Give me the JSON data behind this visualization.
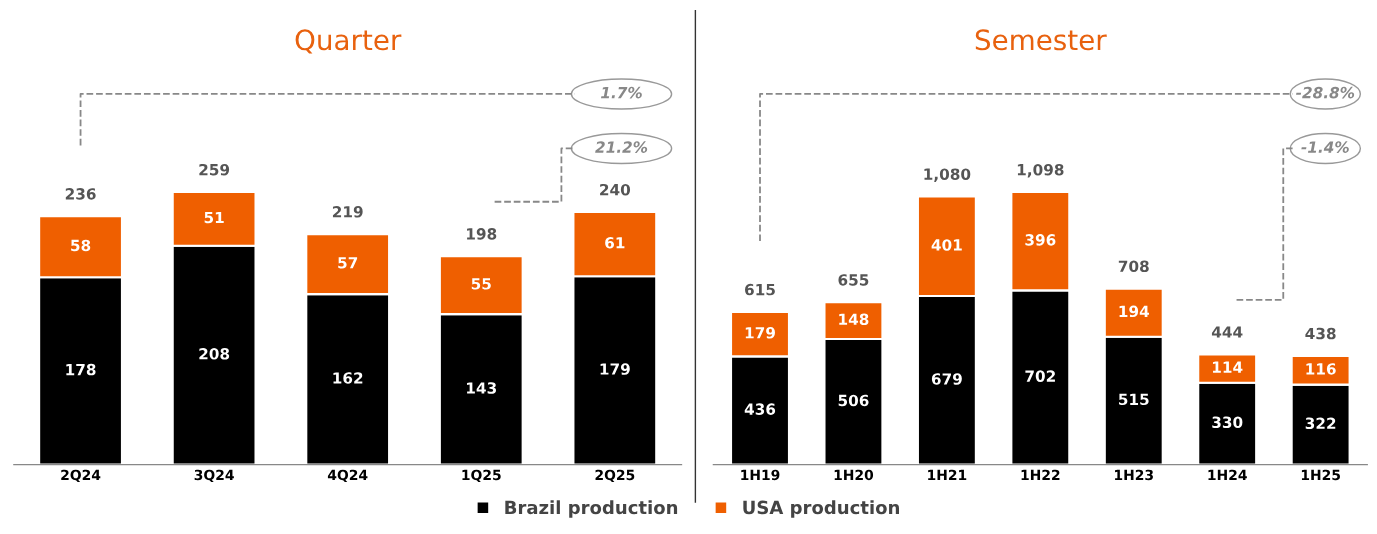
{
  "chart_data": [
    {
      "type": "bar",
      "title": "Quarter",
      "stacked": true,
      "data_labels": true,
      "legend": "bottom",
      "categories": [
        "2Q24",
        "3Q24",
        "4Q24",
        "1Q25",
        "2Q25"
      ],
      "series": [
        {
          "name": "Brazil production",
          "color": "#000000",
          "values": [
            178,
            208,
            162,
            143,
            179
          ]
        },
        {
          "name": "USA production",
          "color": "#ef5f00",
          "values": [
            58,
            51,
            57,
            55,
            61
          ]
        }
      ],
      "totals": [
        "236",
        "259",
        "219",
        "198",
        "240"
      ],
      "annotations": [
        "1.7%",
        "21.2%"
      ]
    },
    {
      "type": "bar",
      "title": "Semester",
      "stacked": true,
      "data_labels": true,
      "categories": [
        "1H19",
        "1H20",
        "1H21",
        "1H22",
        "1H23",
        "1H24",
        "1H25"
      ],
      "series": [
        {
          "name": "Brazil production",
          "color": "#000000",
          "values": [
            436,
            506,
            679,
            702,
            515,
            330,
            322
          ]
        },
        {
          "name": "USA production",
          "color": "#ef5f00",
          "values": [
            179,
            148,
            401,
            396,
            194,
            114,
            116
          ]
        }
      ],
      "totals": [
        "615",
        "655",
        "1,080",
        "1,098",
        "708",
        "444",
        "438"
      ],
      "annotations": [
        "-28.8%",
        "-1.4%"
      ]
    }
  ]
}
